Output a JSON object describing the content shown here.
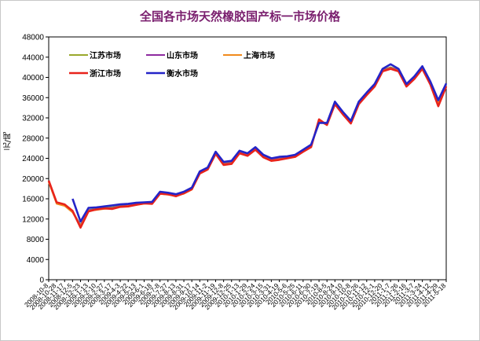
{
  "chart_data": {
    "type": "line",
    "title": "全国各市场天然橡胶国产标一市场价格",
    "ylabel": "元/吨",
    "xlabel": "",
    "ylim": [
      0,
      48000
    ],
    "yticks": [
      0,
      4000,
      8000,
      12000,
      16000,
      20000,
      24000,
      28000,
      32000,
      36000,
      40000,
      44000,
      48000
    ],
    "grid": false,
    "legend_position": "top-left",
    "x_tick_labels": [
      "2008-10-8",
      "2008-10-28",
      "2008-11-17",
      "2008-12-5",
      "2008-12-23",
      "2009-1-13",
      "2009-2-10",
      "2009-2-27",
      "2009-3-17",
      "2009-4-3",
      "2009-4-22",
      "2009-5-13",
      "2009-6-1",
      "2009-6-18",
      "2009-7-8",
      "2009-7-27",
      "2009-8-13",
      "2009-8-31",
      "2009-9-17",
      "2009-10-14",
      "2009-11-2",
      "2009-11-19",
      "2009-12-8",
      "2009-12-25",
      "2010-1-13",
      "2010-1-29",
      "2010-2-24",
      "2010-3-15",
      "2010-3-31",
      "2010-4-19",
      "2010-5-6",
      "2010-5-25",
      "2010-6-11",
      "2010-6-30",
      "2010-7-19",
      "2010-8-5",
      "2010-8-24",
      "2010-9-10",
      "2010-10-8",
      "2010-10-26",
      "2010-11-12",
      "2010-12-1",
      "2010-12-20",
      "2011-1-7",
      "2011-1-26",
      "2011-2-16",
      "2011-3-7",
      "2011-3-24",
      "2011-4-12",
      "2011-4-29",
      "2011-5-18"
    ],
    "x": [
      0,
      1,
      2,
      3,
      4,
      5,
      6,
      7,
      8,
      9,
      10,
      11,
      12,
      13,
      14,
      15,
      16,
      17,
      18,
      19,
      20,
      21,
      22,
      23,
      24,
      25,
      26,
      27,
      28,
      29,
      30,
      31,
      32,
      33,
      34,
      35,
      36,
      37,
      38,
      39,
      40,
      41,
      42,
      43,
      44,
      45,
      46,
      47,
      48,
      49,
      50
    ],
    "series": [
      {
        "name": "江苏市场",
        "color": "#9aa82c",
        "values": [
          19500,
          15200,
          14800,
          13500,
          10800,
          13800,
          14000,
          14200,
          14300,
          14600,
          14800,
          15000,
          15200,
          15300,
          17200,
          17000,
          16800,
          17200,
          18000,
          21200,
          22000,
          25000,
          23000,
          23200,
          25200,
          24800,
          26000,
          24500,
          23800,
          24000,
          24200,
          24500,
          25500,
          26500,
          31500,
          30800,
          35000,
          33000,
          31200,
          35000,
          36800,
          38500,
          41500,
          42000,
          41500,
          38500,
          40000,
          42000,
          39000,
          35000,
          38500
        ]
      },
      {
        "name": "山东市场",
        "color": "#8e2ba0",
        "values": [
          19400,
          15100,
          14700,
          13400,
          10700,
          13700,
          13900,
          14100,
          14200,
          14500,
          14700,
          14900,
          15100,
          15200,
          17100,
          16900,
          16700,
          17100,
          17900,
          21100,
          21900,
          24900,
          22900,
          23100,
          25100,
          24700,
          25900,
          24400,
          23700,
          23900,
          24100,
          24400,
          25400,
          26400,
          31400,
          30700,
          34900,
          32900,
          31100,
          34900,
          36700,
          38400,
          41400,
          41900,
          41400,
          38400,
          39900,
          41900,
          38900,
          34900,
          38400
        ]
      },
      {
        "name": "上海市场",
        "color": "#f08a1c",
        "values": [
          19300,
          15000,
          14600,
          13300,
          10600,
          13600,
          13800,
          14000,
          14100,
          14400,
          14600,
          14800,
          15000,
          15100,
          17000,
          16800,
          16600,
          17000,
          17800,
          21000,
          21800,
          24800,
          22800,
          23000,
          25000,
          24600,
          25800,
          24300,
          23600,
          23800,
          24000,
          24300,
          25300,
          26300,
          31300,
          30600,
          34800,
          32800,
          31000,
          34800,
          36600,
          38300,
          41300,
          41800,
          41300,
          38300,
          39800,
          41800,
          38800,
          34800,
          38300
        ]
      },
      {
        "name": "浙江市场",
        "color": "#e8231b",
        "values": [
          19600,
          15300,
          14900,
          13600,
          10300,
          13500,
          13900,
          14100,
          14000,
          14400,
          14500,
          14800,
          15100,
          15000,
          17000,
          16900,
          16500,
          17100,
          17900,
          21000,
          21800,
          24900,
          22700,
          22900,
          25000,
          24500,
          25700,
          24200,
          23500,
          23700,
          24000,
          24300,
          25300,
          26200,
          31700,
          30600,
          34700,
          32700,
          30900,
          34700,
          36500,
          38200,
          41200,
          41700,
          41200,
          38200,
          39700,
          41700,
          38600,
          34300,
          38200
        ]
      },
      {
        "name": "衡水市场",
        "color": "#2424c8",
        "values": [
          null,
          null,
          null,
          16000,
          11500,
          14200,
          14300,
          14500,
          14700,
          14900,
          15000,
          15200,
          15300,
          15400,
          17400,
          17200,
          16900,
          17400,
          18200,
          21400,
          22200,
          25300,
          23300,
          23500,
          25500,
          25000,
          26200,
          24700,
          24000,
          24300,
          24400,
          24700,
          25700,
          26700,
          31000,
          31000,
          35200,
          33200,
          31400,
          35200,
          37000,
          38700,
          41700,
          42600,
          41700,
          38700,
          40200,
          42200,
          39200,
          35500,
          38800
        ]
      }
    ]
  }
}
